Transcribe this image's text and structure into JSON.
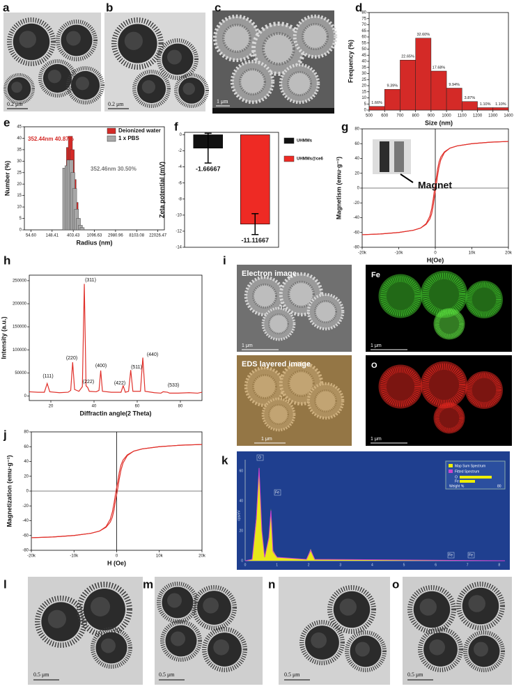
{
  "panels": {
    "letters": [
      "a",
      "b",
      "c",
      "d",
      "e",
      "f",
      "g",
      "h",
      "i",
      "j",
      "k",
      "l",
      "m",
      "n",
      "o"
    ],
    "a_scale": "0.2 μm",
    "b_scale": "0.2 μm",
    "c_scale": "1 μm",
    "i": {
      "titles": [
        "Electron image",
        "Fe",
        "EDS layered image",
        "O"
      ],
      "scales": [
        "1 μm",
        "1 μm",
        "1 μm",
        "1 μm"
      ]
    },
    "k": {
      "legend": [
        "Map Sum Spectrum",
        "Fitted Spectrum"
      ],
      "elements": [
        "O",
        "Fe"
      ],
      "weight_label": "Weight %",
      "weight_max": 80,
      "y_label": "cps/eV",
      "xticks": [
        0,
        1,
        2,
        3,
        4,
        5,
        6,
        7,
        8
      ],
      "yticks": [
        0,
        20,
        40,
        60
      ],
      "peak_labels": [
        "O",
        "Fe",
        "Fe",
        "Fe"
      ]
    },
    "lmno_scales": [
      "0.5 μm",
      "0.5 μm",
      "0.5 μm",
      "0.5 μm"
    ]
  },
  "chart_data": [
    {
      "type": "histogram",
      "xlabel": "Size (nm)",
      "ylabel": "Frequency (%)",
      "bins": [
        500,
        600,
        700,
        800,
        900,
        1000,
        1100,
        1200,
        1300,
        1400
      ],
      "values": [
        3,
        17,
        41,
        59,
        32,
        18,
        7,
        2,
        2
      ],
      "annotations": [
        "1.66%",
        "9.39%",
        "22.65%",
        "32.60%",
        "17.68%",
        "9.94%",
        "3.87%",
        "1.10%",
        "1.10%"
      ],
      "color": "#d42a27",
      "xlim": [
        500,
        1400
      ],
      "ylim": [
        0,
        80
      ],
      "xticks": [
        500,
        600,
        700,
        800,
        900,
        1000,
        1100,
        1200,
        1300,
        1400
      ],
      "yticks": [
        0,
        5,
        10,
        15,
        20,
        25,
        30,
        35,
        40,
        45,
        50,
        55,
        60,
        65,
        70,
        75,
        80
      ]
    },
    {
      "type": "bar",
      "xlabel": "Radius (nm)",
      "ylabel": "Number (%)",
      "xlog": true,
      "xlim": [
        40,
        30000
      ],
      "ylim": [
        0,
        45
      ],
      "xticks": [
        {
          "value": 54.6,
          "label": "54.60"
        },
        148.41,
        403.43,
        1096.63,
        2980.96,
        8103.08,
        22026.47
      ],
      "yticks": [
        0,
        5,
        10,
        15,
        20,
        25,
        30,
        35,
        40,
        45
      ],
      "legend": "upper right",
      "annotations": [
        "352.44nm  40.87%",
        "352.46nm  30.50%"
      ],
      "series": [
        {
          "name": "Deionized water",
          "color": "#d42a27",
          "x": [
            295,
            322,
            352,
            385,
            420,
            460,
            500,
            550
          ],
          "values": [
            19,
            36,
            40.87,
            35,
            22,
            12,
            5,
            1.5
          ]
        },
        {
          "name": "1 x PBS",
          "color": "#a8a8a8",
          "x": [
            270,
            300,
            330,
            365,
            395,
            430,
            470,
            515,
            565,
            615
          ],
          "values": [
            27,
            28,
            30.5,
            30.5,
            25,
            18,
            9,
            5,
            2,
            1
          ]
        }
      ]
    },
    {
      "type": "bar",
      "ylabel": "Zeta potential (mV)",
      "ylim": [
        -14,
        0.3
      ],
      "yticks": [
        0,
        -2,
        -4,
        -6,
        -8,
        -10,
        -12,
        -14
      ],
      "legend": "right",
      "series": [
        {
          "name": "UHMMs",
          "color": "#111111",
          "values": [
            -1.66667
          ],
          "errors": [
            1.85
          ]
        },
        {
          "name": "UHMMs@ce6",
          "color": "#ee2a24",
          "values": [
            -11.11667
          ],
          "errors": [
            1.3
          ]
        }
      ]
    },
    {
      "type": "line",
      "xlabel": "H(Oe)",
      "ylabel": "Magnetism (emu·g⁻¹)",
      "origin_lines": true,
      "annotations": [
        "Magnet"
      ],
      "xlim": [
        -20000,
        20000
      ],
      "ylim": [
        -80,
        80
      ],
      "xticks": [
        {
          "value": -20000,
          "label": "-20k"
        },
        {
          "value": -10000,
          "label": "-10k"
        },
        0,
        {
          "value": 10000,
          "label": "10k"
        },
        {
          "value": 20000,
          "label": "20k"
        }
      ],
      "yticks": [
        -80,
        -60,
        -40,
        -20,
        0,
        20,
        40,
        60,
        80
      ],
      "series": [
        {
          "color": "#e0302a",
          "x": [
            -20000,
            -15000,
            -10000,
            -6000,
            -4000,
            -2500,
            -1500,
            -1000,
            -600,
            -300,
            0,
            300,
            600,
            1000,
            1500,
            2500,
            4000,
            6000,
            10000,
            15000,
            20000
          ],
          "values": [
            -63,
            -62,
            -60,
            -57,
            -54,
            -49,
            -42,
            -35,
            -25,
            -14,
            -5,
            5,
            16,
            28,
            38,
            48,
            54,
            57,
            60,
            62,
            63
          ]
        },
        {
          "color": "#e0302a",
          "x": [
            -20000,
            -15000,
            -10000,
            -6000,
            -4000,
            -2500,
            -1500,
            -1000,
            -600,
            -300,
            0,
            300,
            600,
            1000,
            1500,
            2500,
            4000,
            6000,
            10000,
            15000,
            20000
          ],
          "values": [
            -63,
            -62,
            -60,
            -57,
            -54,
            -48,
            -38,
            -28,
            -16,
            -5,
            5,
            14,
            25,
            35,
            42,
            49,
            54,
            57,
            60,
            62,
            63
          ]
        }
      ]
    },
    {
      "type": "line",
      "xlabel": "Diffractin angle(2 Theta)",
      "ylabel": "Intensity (a.u.)",
      "xlim": [
        10,
        90
      ],
      "ylim": [
        -10000,
        262000
      ],
      "xticks": [
        20,
        40,
        60,
        80
      ],
      "yticks": [
        0,
        50000,
        100000,
        150000,
        200000,
        250000
      ],
      "annotations": [
        "(111)",
        "(220)",
        "(311)",
        "(222)",
        "(400)",
        "(422)",
        "(511)",
        "(440)",
        "(533)"
      ],
      "series": [
        {
          "color": "#e0302a",
          "x": [
            10,
            14,
            17,
            18.3,
            19.5,
            24,
            28,
            29.2,
            30.1,
            31,
            33,
            34.6,
            35.5,
            36.3,
            37.1,
            37.8,
            41,
            42.3,
            43.1,
            43.9,
            48,
            52.5,
            53.5,
            54.5,
            56,
            57,
            58,
            61.5,
            62.6,
            63.6,
            68,
            71,
            72,
            74,
            75,
            79,
            84,
            88,
            90
          ],
          "values": [
            9000,
            8000,
            8000,
            27000,
            9000,
            7000,
            8000,
            12000,
            73000,
            14000,
            10000,
            20000,
            243000,
            22000,
            18000,
            10000,
            9000,
            12000,
            55000,
            10000,
            8000,
            8000,
            22000,
            8000,
            10000,
            56000,
            10000,
            10000,
            83000,
            10000,
            7000,
            6000,
            9000,
            8000,
            6000,
            6000,
            7000,
            6000,
            8000
          ]
        }
      ]
    },
    {
      "type": "line",
      "xlabel": "H (Oe)",
      "ylabel": "Magnetization (emu·g⁻¹)",
      "origin_lines": true,
      "xlim": [
        -20000,
        20000
      ],
      "ylim": [
        -80,
        80
      ],
      "xticks": [
        {
          "value": -20000,
          "label": "-20k"
        },
        {
          "value": -10000,
          "label": "-10k"
        },
        0,
        {
          "value": 10000,
          "label": "10k"
        },
        {
          "value": 20000,
          "label": "20k"
        }
      ],
      "yticks": [
        -80,
        -60,
        -40,
        -20,
        0,
        20,
        40,
        60,
        80
      ],
      "series": [
        {
          "color": "#e0302a",
          "x": [
            -20000,
            -15000,
            -10000,
            -6000,
            -4000,
            -2500,
            -1500,
            -1000,
            -600,
            -300,
            0,
            300,
            600,
            1000,
            1500,
            2500,
            4000,
            6000,
            10000,
            15000,
            20000
          ],
          "values": [
            -63,
            -62,
            -60,
            -57,
            -54,
            -49,
            -42,
            -35,
            -25,
            -14,
            -5,
            5,
            16,
            28,
            38,
            48,
            54,
            57,
            60,
            62,
            63
          ]
        },
        {
          "color": "#e0302a",
          "x": [
            -20000,
            -15000,
            -10000,
            -6000,
            -4000,
            -2500,
            -1500,
            -1000,
            -600,
            -300,
            0,
            300,
            600,
            1000,
            1500,
            2500,
            4000,
            6000,
            10000,
            15000,
            20000
          ],
          "values": [
            -63,
            -62,
            -60,
            -57,
            -54,
            -48,
            -38,
            -28,
            -16,
            -5,
            5,
            14,
            25,
            35,
            42,
            49,
            54,
            57,
            60,
            62,
            63
          ]
        }
      ]
    }
  ]
}
